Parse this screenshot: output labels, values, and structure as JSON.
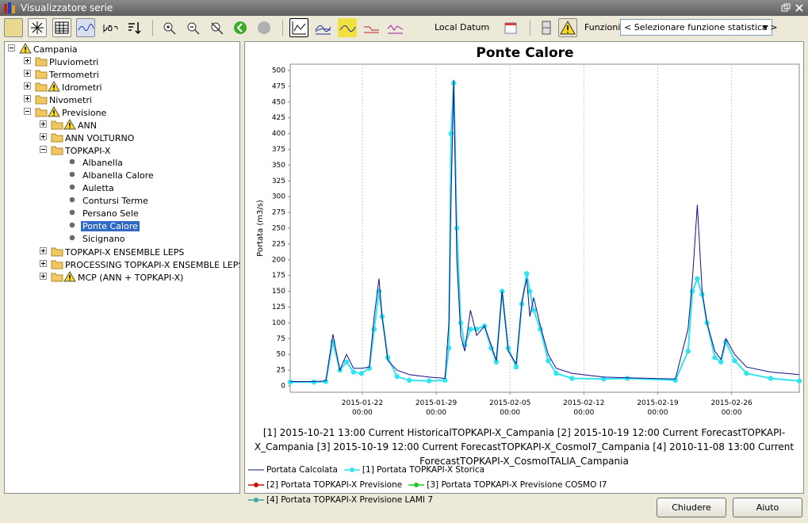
{
  "window": {
    "title": "Visualizzatore serie"
  },
  "toolbar": {
    "datum": "Local Datum",
    "functions_label": "Funzioni",
    "functions_select": "< Selezionare funzione statistica >"
  },
  "tree": [
    {
      "label": "Campania",
      "level": 0,
      "warning": true
    },
    {
      "label": "Pluviometri",
      "level": 1
    },
    {
      "label": "Termometri",
      "level": 1
    },
    {
      "label": "Idrometri",
      "level": 1,
      "warning": true
    },
    {
      "label": "Nivometri",
      "level": 1
    },
    {
      "label": "Previsione",
      "level": 1,
      "warning": true
    },
    {
      "label": "ANN",
      "level": 2,
      "warning": true
    },
    {
      "label": "ANN VOLTURNO",
      "level": 2
    },
    {
      "label": "TOPKAPI-X",
      "level": 2
    },
    {
      "label": "Albanella",
      "level": 3
    },
    {
      "label": "Albanella Calore",
      "level": 3
    },
    {
      "label": "Auletta",
      "level": 3
    },
    {
      "label": "Contursi Terme",
      "level": 3
    },
    {
      "label": "Persano Sele",
      "level": 3
    },
    {
      "label": "Ponte Calore",
      "level": 3,
      "selected": true
    },
    {
      "label": "Sicignano",
      "level": 3
    },
    {
      "label": "TOPKAPI-X ENSEMBLE LEPS",
      "level": 2
    },
    {
      "label": "PROCESSING TOPKAPI-X ENSEMBLE LEPS",
      "level": 2
    },
    {
      "label": "MCP (ANN + TOPKAPI-X)",
      "level": 2,
      "warning": true
    }
  ],
  "chart_data": {
    "type": "line",
    "title": "Ponte Calore",
    "caption": "[1] 2015-10-21 13:00 Current HistoricalTOPKAPI-X_Campania [2] 2015-10-19 12:00 Current ForecastTOPKAPI-X_Campania [3] 2015-10-19 12:00 Current ForecastTOPKAPI-X_CosmoI7_Campania [4] 2010-11-08 13:00 Current ForecastTOPKAPI-X_CosmoITALIA_Campania",
    "ylabel": "Portata (m3/s)",
    "x": [
      "2015-01-15 04:00",
      "2015-01-17 10:00",
      "2015-01-18 13:00",
      "2015-01-19 05:00",
      "2015-01-19 21:00",
      "2015-01-20 12:00",
      "2015-01-21 04:00",
      "2015-01-21 22:00",
      "2015-01-22 16:00",
      "2015-01-23 03:00",
      "2015-01-23 14:00",
      "2015-01-23 21:00",
      "2015-01-24 10:00",
      "2015-01-25 07:00",
      "2015-01-26 11:00",
      "2015-01-28 08:00",
      "2015-01-29 20:00",
      "2015-01-30 05:00",
      "2015-01-30 10:00",
      "2015-01-30 16:00",
      "2015-01-30 23:00",
      "2015-01-31 08:00",
      "2015-01-31 17:00",
      "2015-02-01 06:00",
      "2015-02-01 20:00",
      "2015-02-02 14:00",
      "2015-02-03 05:00",
      "2015-02-03 17:00",
      "2015-02-04 06:00",
      "2015-02-04 20:00",
      "2015-02-05 14:00",
      "2015-02-06 03:00",
      "2015-02-06 14:00",
      "2015-02-06 21:00",
      "2015-02-07 06:00",
      "2015-02-07 21:00",
      "2015-02-08 15:00",
      "2015-02-09 09:00",
      "2015-02-10 21:00",
      "2015-02-13 21:00",
      "2015-02-16 03:00",
      "2015-02-20 16:00",
      "2015-02-21 21:00",
      "2015-02-22 07:00",
      "2015-02-22 18:00",
      "2015-02-23 05:00",
      "2015-02-23 16:00",
      "2015-02-24 10:00",
      "2015-02-25 00:00",
      "2015-02-25 11:00",
      "2015-02-26 07:00",
      "2015-02-27 10:00",
      "2015-03-01 17:00",
      "2015-03-04 10:00"
    ],
    "xlim": [
      "2015-01-15 04:00",
      "2015-03-04 10:00"
    ],
    "xticks": [
      "2015-01-22 00:00",
      "2015-01-29 00:00",
      "2015-02-05 00:00",
      "2015-02-12 00:00",
      "2015-02-19 00:00",
      "2015-02-26 00:00"
    ],
    "ylim": [
      -10,
      510
    ],
    "yticks": [
      0,
      25,
      50,
      75,
      100,
      125,
      150,
      175,
      200,
      225,
      250,
      275,
      300,
      325,
      350,
      375,
      400,
      425,
      450,
      475,
      500
    ],
    "grid": "x",
    "series": [
      {
        "name": "Portata Calcolata",
        "color": "#10108a",
        "values": [
          7,
          7,
          8,
          82,
          25,
          50,
          28,
          28,
          30,
          110,
          170,
          110,
          40,
          25,
          18,
          14,
          12,
          100,
          300,
          485,
          200,
          80,
          55,
          120,
          80,
          95,
          65,
          40,
          150,
          55,
          35,
          135,
          170,
          110,
          140,
          95,
          50,
          28,
          20,
          14,
          13,
          11,
          90,
          170,
          287,
          150,
          100,
          55,
          42,
          75,
          50,
          30,
          22,
          18
        ]
      },
      {
        "name": "[1] Portata TOPKAPI-X Storica",
        "color": "#30e4f0",
        "marker": "circle",
        "values": [
          6,
          6,
          7,
          70,
          25,
          38,
          22,
          20,
          28,
          90,
          150,
          110,
          45,
          15,
          9,
          8,
          9,
          60,
          400,
          480,
          250,
          100,
          65,
          90,
          90,
          95,
          60,
          38,
          150,
          60,
          30,
          130,
          178,
          150,
          120,
          90,
          40,
          20,
          12,
          11,
          12,
          9,
          55,
          150,
          170,
          145,
          100,
          45,
          38,
          70,
          40,
          20,
          12,
          8
        ]
      },
      {
        "name": "[2] Portata TOPKAPI-X Previsione",
        "color": "#cc1010",
        "marker": "circle",
        "values": [
          null,
          null,
          null,
          null,
          null,
          null,
          null,
          null,
          null,
          null,
          null,
          null,
          null,
          null,
          null,
          null,
          null,
          null,
          null,
          null,
          null,
          null,
          null,
          null,
          null,
          null,
          null,
          null,
          null,
          null,
          null,
          null,
          null,
          null,
          null,
          null,
          null,
          null,
          null,
          null,
          null,
          null,
          null,
          null,
          null,
          null,
          null,
          null,
          null,
          null,
          null,
          null,
          null,
          null
        ]
      },
      {
        "name": "[3] Portata TOPKAPI-X Previsione COSMO I7",
        "color": "#22cc22",
        "marker": "circle",
        "values": [
          null,
          null,
          null,
          null,
          null,
          null,
          null,
          null,
          null,
          null,
          null,
          null,
          null,
          null,
          null,
          null,
          null,
          null,
          null,
          null,
          null,
          null,
          null,
          null,
          null,
          null,
          null,
          null,
          null,
          null,
          null,
          null,
          null,
          null,
          null,
          null,
          null,
          null,
          null,
          null,
          null,
          null,
          null,
          null,
          null,
          null,
          null,
          null,
          null,
          null,
          null,
          null,
          null,
          null
        ]
      },
      {
        "name": "[4] Portata TOPKAPI-X Previsione LAMI 7",
        "color": "#3aa8a8",
        "marker": "circle",
        "values": [
          null,
          null,
          null,
          null,
          null,
          null,
          null,
          null,
          null,
          null,
          null,
          null,
          null,
          null,
          null,
          null,
          null,
          null,
          null,
          null,
          null,
          null,
          null,
          null,
          null,
          null,
          null,
          null,
          null,
          null,
          null,
          null,
          null,
          null,
          null,
          null,
          null,
          null,
          null,
          null,
          null,
          null,
          null,
          null,
          null,
          null,
          null,
          null,
          null,
          null,
          null,
          null,
          null,
          null
        ]
      }
    ]
  },
  "buttons": [
    "Chiudere",
    "Aiuto"
  ]
}
